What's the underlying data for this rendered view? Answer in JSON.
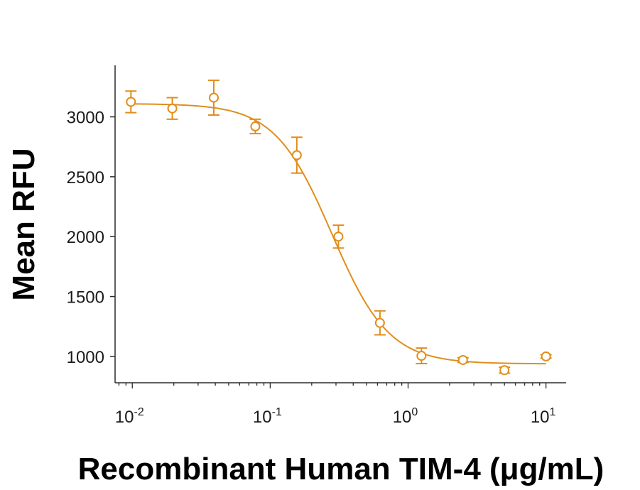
{
  "chart_data": {
    "type": "scatter",
    "xlabel": "Recombinant Human TIM-4 (μg/mL)",
    "ylabel": "Mean RFU",
    "xscale": "log",
    "xlim": [
      0.0075,
      14
    ],
    "ylim": [
      780,
      3430
    ],
    "grid": false,
    "color": "#E08E1B",
    "x_ticks": [
      {
        "value": 0.01,
        "base": "10",
        "exp": "-2"
      },
      {
        "value": 0.1,
        "base": "10",
        "exp": "-1"
      },
      {
        "value": 1,
        "base": "10",
        "exp": "0"
      },
      {
        "value": 10,
        "base": "10",
        "exp": "1"
      }
    ],
    "y_ticks": [
      {
        "value": 1000,
        "label": "1000"
      },
      {
        "value": 1500,
        "label": "1500"
      },
      {
        "value": 2000,
        "label": "2000"
      },
      {
        "value": 2500,
        "label": "2500"
      },
      {
        "value": 3000,
        "label": "3000"
      }
    ],
    "points": [
      {
        "x": 0.00977,
        "y": 3125,
        "err": 90
      },
      {
        "x": 0.0195,
        "y": 3070,
        "err": 90
      },
      {
        "x": 0.039,
        "y": 3160,
        "err": 145
      },
      {
        "x": 0.078,
        "y": 2920,
        "err": 60
      },
      {
        "x": 0.156,
        "y": 2680,
        "err": 150
      },
      {
        "x": 0.3125,
        "y": 2000,
        "err": 95
      },
      {
        "x": 0.625,
        "y": 1280,
        "err": 100
      },
      {
        "x": 1.25,
        "y": 1005,
        "err": 65
      },
      {
        "x": 2.5,
        "y": 970,
        "err": 20
      },
      {
        "x": 5,
        "y": 885,
        "err": 25
      },
      {
        "x": 10,
        "y": 1000,
        "err": 15
      }
    ],
    "fit": {
      "model": "4PL",
      "bottom": 938,
      "top": 3110,
      "ec50": 0.28,
      "hill": 2.1
    }
  }
}
